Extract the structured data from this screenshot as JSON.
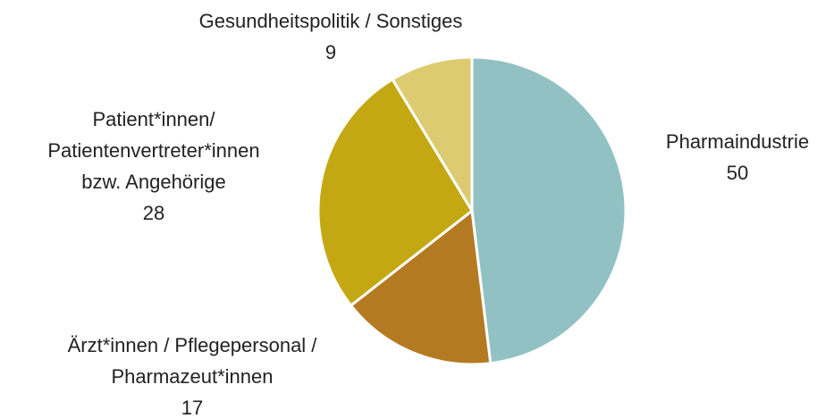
{
  "chart_data": {
    "type": "pie",
    "categories": [
      [
        "Pharmaindustrie"
      ],
      [
        "Ärzt*innen / Pflegepersonal /",
        "Pharmazeut*innen"
      ],
      [
        "Patient*innen/",
        "Patientenvertreter*innen",
        "bzw. Angehörige"
      ],
      [
        "Gesundheitspolitik / Sonstiges"
      ]
    ],
    "values": [
      50,
      17,
      28,
      9
    ],
    "colors": [
      "#92c1c3",
      "#b47a22",
      "#c4a813",
      "#dccb70"
    ]
  }
}
